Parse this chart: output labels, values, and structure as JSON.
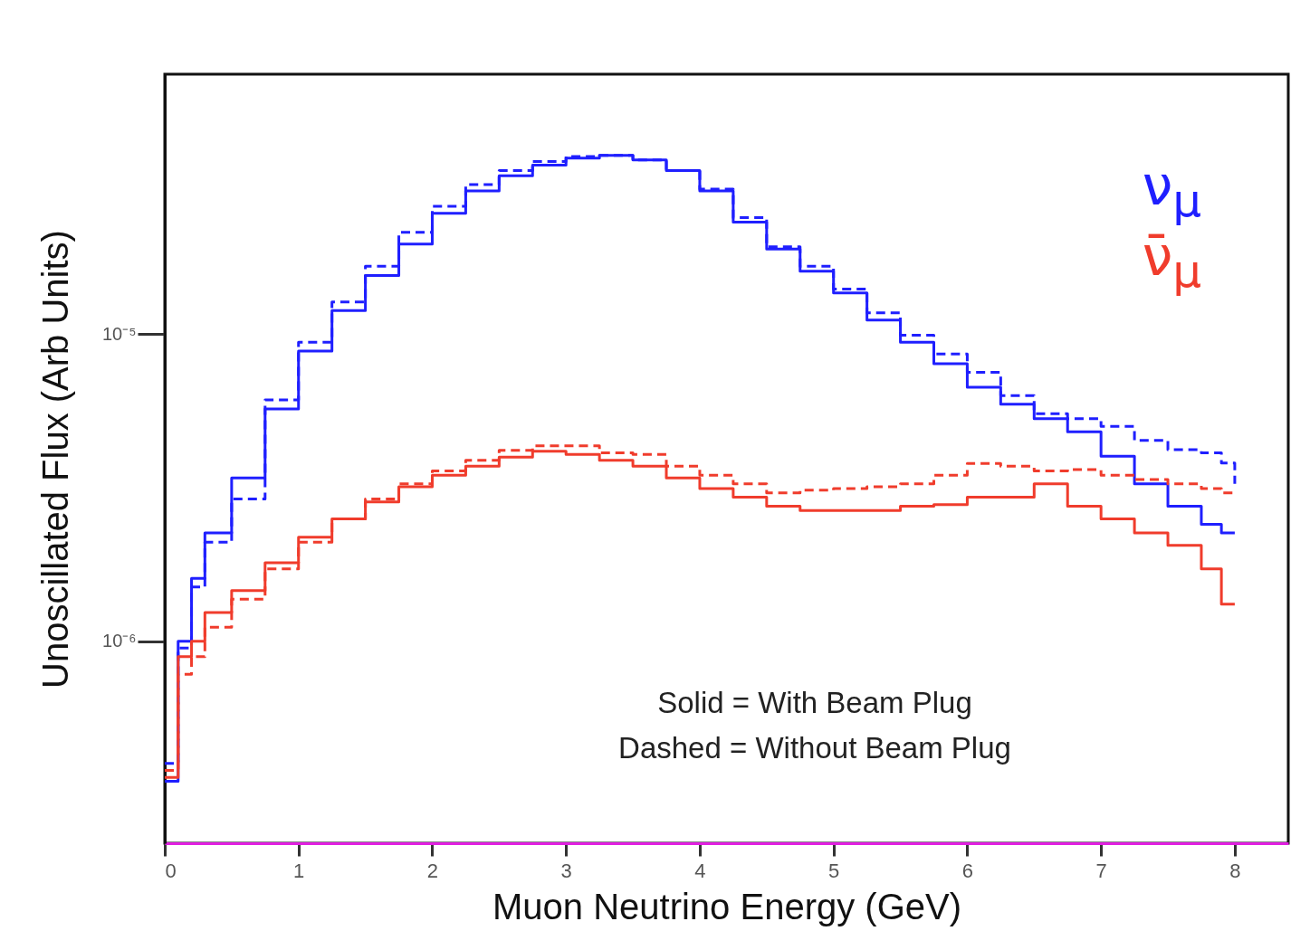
{
  "chart_data": {
    "type": "step",
    "xlabel": "Muon Neutrino Energy (GeV)",
    "ylabel": "Unoscillated Flux (Arb Units)",
    "x": [
      0,
      0.1,
      0.2,
      0.3,
      0.5,
      0.75,
      1.0,
      1.25,
      1.5,
      1.75,
      2.0,
      2.25,
      2.5,
      2.75,
      3.0,
      3.25,
      3.5,
      3.75,
      4.0,
      4.25,
      4.5,
      4.75,
      5.0,
      5.25,
      5.5,
      5.75,
      6.0,
      6.25,
      6.5,
      6.75,
      7.0,
      7.25,
      7.5,
      7.75,
      7.9,
      8.0
    ],
    "series": [
      {
        "name": "ν$_{μ}$",
        "color": "#1f1fff",
        "line_style": "solid",
        "values": [
          3.5e-07,
          1e-06,
          1.6e-06,
          2.25e-06,
          3.4e-06,
          5.7e-06,
          8.8e-06,
          1.19e-05,
          1.55e-05,
          1.96e-05,
          2.47e-05,
          2.92e-05,
          3.27e-05,
          3.54e-05,
          3.73e-05,
          3.81e-05,
          3.68e-05,
          3.4e-05,
          2.92e-05,
          2.31e-05,
          1.89e-05,
          1.6e-05,
          1.36e-05,
          1.11e-05,
          9.4e-06,
          8e-06,
          6.7e-06,
          5.9e-06,
          5.3e-06,
          4.8e-06,
          4e-06,
          3.25e-06,
          2.75e-06,
          2.4e-06,
          2.25e-06,
          2.25e-06
        ]
      },
      {
        "color": "#1f1fff",
        "line_style": "dashed",
        "values": [
          4e-07,
          9.5e-07,
          1.5e-06,
          2.1e-06,
          2.9e-06,
          6.1e-06,
          9.4e-06,
          1.27e-05,
          1.66e-05,
          2.14e-05,
          2.6e-05,
          3.06e-05,
          3.4e-05,
          3.64e-05,
          3.78e-05,
          3.81e-05,
          3.68e-05,
          3.4e-05,
          2.96e-05,
          2.39e-05,
          1.92e-05,
          1.66e-05,
          1.4e-05,
          1.17e-05,
          9.9e-06,
          8.6e-06,
          7.5e-06,
          6.3e-06,
          5.5e-06,
          5.3e-06,
          5e-06,
          4.5e-06,
          4.2e-06,
          4.1e-06,
          3.8e-06,
          3.25e-06
        ]
      },
      {
        "name": "ν̄$_{μ}$",
        "color": "#f03c2c",
        "line_style": "solid",
        "values": [
          3.6e-07,
          8.9e-07,
          1e-06,
          1.24e-06,
          1.46e-06,
          1.8e-06,
          2.18e-06,
          2.5e-06,
          2.84e-06,
          3.18e-06,
          3.47e-06,
          3.71e-06,
          3.97e-06,
          4.15e-06,
          4.05e-06,
          3.88e-06,
          3.71e-06,
          3.4e-06,
          3.14e-06,
          2.94e-06,
          2.75e-06,
          2.66e-06,
          2.66e-06,
          2.66e-06,
          2.75e-06,
          2.78e-06,
          2.94e-06,
          2.94e-06,
          3.25e-06,
          2.75e-06,
          2.5e-06,
          2.25e-06,
          2.05e-06,
          1.72e-06,
          1.32e-06,
          1.32e-06
        ]
      },
      {
        "color": "#f03c2c",
        "line_style": "dashed",
        "values": [
          3.8e-07,
          7.8e-07,
          8.9e-07,
          1.11e-06,
          1.37e-06,
          1.72e-06,
          2.1e-06,
          2.5e-06,
          2.9e-06,
          3.25e-06,
          3.58e-06,
          3.88e-06,
          4.18e-06,
          4.32e-06,
          4.32e-06,
          4.1e-06,
          4.05e-06,
          3.71e-06,
          3.47e-06,
          3.25e-06,
          3.04e-06,
          3.1e-06,
          3.14e-06,
          3.18e-06,
          3.25e-06,
          3.47e-06,
          3.79e-06,
          3.71e-06,
          3.58e-06,
          3.62e-06,
          3.47e-06,
          3.36e-06,
          3.25e-06,
          3.14e-06,
          3.04e-06,
          3.04e-06
        ]
      }
    ],
    "log": "y",
    "xlim": [
      0,
      8.4
    ],
    "xticks": [
      0,
      1,
      2,
      3,
      4,
      5,
      6,
      7,
      8
    ],
    "ylim": [
      2.2e-07,
      7e-05
    ],
    "yticks": [
      {
        "value": 1e-06,
        "label": "10⁻⁶"
      },
      {
        "value": 1e-05,
        "label": "10⁻⁵"
      }
    ],
    "grid": false,
    "legend": "top right",
    "annotations": [
      "Solid = With Beam Plug",
      "Dashed = Without Beam Plug"
    ]
  }
}
